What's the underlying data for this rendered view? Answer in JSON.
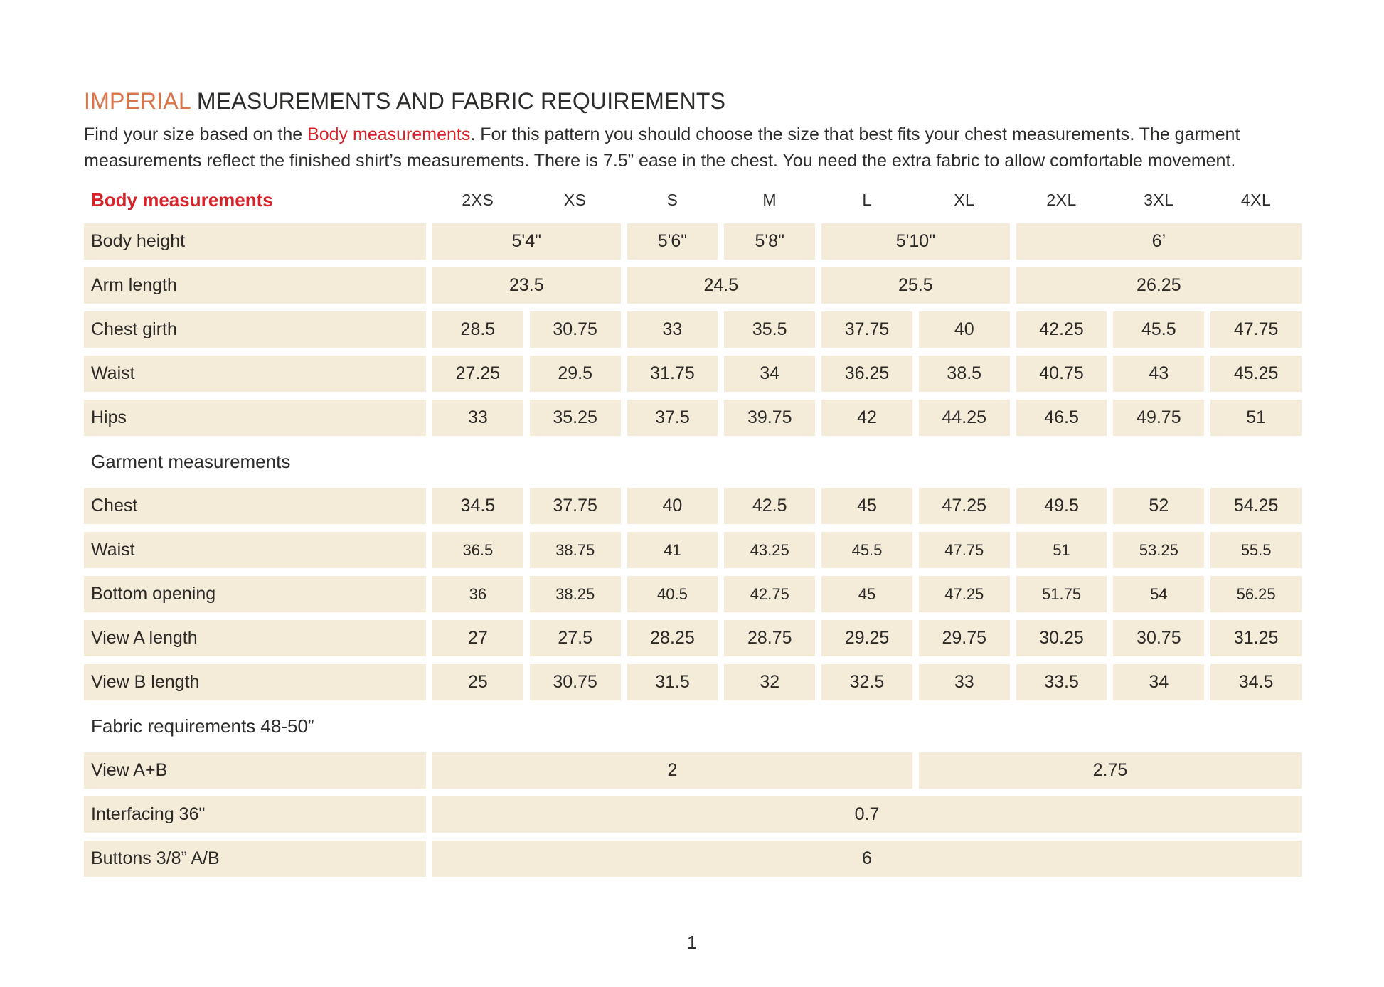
{
  "colors": {
    "accent_orange": "#dc7449",
    "accent_red": "#d7222a",
    "cell_background": "#f4ebd9",
    "text": "#2b2a27",
    "page_background": "#ffffff"
  },
  "title": {
    "highlight": "IMPERIAL",
    "rest": " MEASUREMENTS AND FABRIC REQUIREMENTS"
  },
  "intro": {
    "part1": "Find your size based on the ",
    "highlight": "Body measurements",
    "part2": ". For this pattern you should choose the size that best fits your chest measurements. The garment measurements reflect the finished shirt’s measurements. There is 7.5” ease in the chest. You need the extra fabric to allow comfortable movement."
  },
  "table": {
    "header_label": "Body measurements",
    "sizes": [
      "2XS",
      "XS",
      "S",
      "M",
      "L",
      "XL",
      "2XL",
      "3XL",
      "4XL"
    ],
    "rows": [
      {
        "type": "data",
        "label": "Body height",
        "cells": [
          {
            "v": "5'4\"",
            "span": 2
          },
          {
            "v": "5'6\"",
            "span": 1
          },
          {
            "v": "5'8\"",
            "span": 1
          },
          {
            "v": "5'10\"",
            "span": 2
          },
          {
            "v": "6’",
            "span": 3
          }
        ]
      },
      {
        "type": "data",
        "label": "Arm length",
        "cells": [
          {
            "v": "23.5",
            "span": 2
          },
          {
            "v": "24.5",
            "span": 2
          },
          {
            "v": "25.5",
            "span": 2
          },
          {
            "v": "26.25",
            "span": 3
          }
        ]
      },
      {
        "type": "data",
        "label": "Chest girth",
        "cells": [
          {
            "v": "28.5",
            "span": 1
          },
          {
            "v": "30.75",
            "span": 1
          },
          {
            "v": "33",
            "span": 1
          },
          {
            "v": "35.5",
            "span": 1
          },
          {
            "v": "37.75",
            "span": 1
          },
          {
            "v": "40",
            "span": 1
          },
          {
            "v": "42.25",
            "span": 1
          },
          {
            "v": "45.5",
            "span": 1
          },
          {
            "v": "47.75",
            "span": 1
          }
        ]
      },
      {
        "type": "data",
        "label": "Waist",
        "cells": [
          {
            "v": "27.25",
            "span": 1
          },
          {
            "v": "29.5",
            "span": 1
          },
          {
            "v": "31.75",
            "span": 1
          },
          {
            "v": "34",
            "span": 1
          },
          {
            "v": "36.25",
            "span": 1
          },
          {
            "v": "38.5",
            "span": 1
          },
          {
            "v": "40.75",
            "span": 1
          },
          {
            "v": "43",
            "span": 1
          },
          {
            "v": "45.25",
            "span": 1
          }
        ]
      },
      {
        "type": "data",
        "label": "Hips",
        "cells": [
          {
            "v": "33",
            "span": 1
          },
          {
            "v": "35.25",
            "span": 1
          },
          {
            "v": "37.5",
            "span": 1
          },
          {
            "v": "39.75",
            "span": 1
          },
          {
            "v": "42",
            "span": 1
          },
          {
            "v": "44.25",
            "span": 1
          },
          {
            "v": "46.5",
            "span": 1
          },
          {
            "v": "49.75",
            "span": 1
          },
          {
            "v": "51",
            "span": 1
          }
        ]
      },
      {
        "type": "section",
        "label": "Garment measurements"
      },
      {
        "type": "data",
        "label": "Chest",
        "cells": [
          {
            "v": "34.5",
            "span": 1
          },
          {
            "v": "37.75",
            "span": 1
          },
          {
            "v": "40",
            "span": 1
          },
          {
            "v": "42.5",
            "span": 1
          },
          {
            "v": "45",
            "span": 1
          },
          {
            "v": "47.25",
            "span": 1
          },
          {
            "v": "49.5",
            "span": 1
          },
          {
            "v": "52",
            "span": 1
          },
          {
            "v": "54.25",
            "span": 1
          }
        ]
      },
      {
        "type": "data",
        "label": "Waist",
        "small": true,
        "cells": [
          {
            "v": "36.5",
            "span": 1
          },
          {
            "v": "38.75",
            "span": 1
          },
          {
            "v": "41",
            "span": 1
          },
          {
            "v": "43.25",
            "span": 1
          },
          {
            "v": "45.5",
            "span": 1
          },
          {
            "v": "47.75",
            "span": 1
          },
          {
            "v": "51",
            "span": 1
          },
          {
            "v": "53.25",
            "span": 1
          },
          {
            "v": "55.5",
            "span": 1
          }
        ]
      },
      {
        "type": "data",
        "label": "Bottom opening",
        "small": true,
        "cells": [
          {
            "v": "36",
            "span": 1
          },
          {
            "v": "38.25",
            "span": 1
          },
          {
            "v": "40.5",
            "span": 1
          },
          {
            "v": "42.75",
            "span": 1
          },
          {
            "v": "45",
            "span": 1
          },
          {
            "v": "47.25",
            "span": 1
          },
          {
            "v": "51.75",
            "span": 1
          },
          {
            "v": "54",
            "span": 1
          },
          {
            "v": "56.25",
            "span": 1
          }
        ]
      },
      {
        "type": "data",
        "label": "View A length",
        "cells": [
          {
            "v": "27",
            "span": 1
          },
          {
            "v": "27.5",
            "span": 1
          },
          {
            "v": "28.25",
            "span": 1
          },
          {
            "v": "28.75",
            "span": 1
          },
          {
            "v": "29.25",
            "span": 1
          },
          {
            "v": "29.75",
            "span": 1
          },
          {
            "v": "30.25",
            "span": 1
          },
          {
            "v": "30.75",
            "span": 1
          },
          {
            "v": "31.25",
            "span": 1
          }
        ]
      },
      {
        "type": "data",
        "label": "View B length",
        "cells": [
          {
            "v": "25",
            "span": 1
          },
          {
            "v": "30.75",
            "span": 1
          },
          {
            "v": "31.5",
            "span": 1
          },
          {
            "v": "32",
            "span": 1
          },
          {
            "v": "32.5",
            "span": 1
          },
          {
            "v": "33",
            "span": 1
          },
          {
            "v": "33.5",
            "span": 1
          },
          {
            "v": "34",
            "span": 1
          },
          {
            "v": "34.5",
            "span": 1
          }
        ]
      },
      {
        "type": "section",
        "label": "Fabric requirements 48-50”"
      },
      {
        "type": "data",
        "label": "View A+B",
        "cells": [
          {
            "v": "2",
            "span": 5
          },
          {
            "v": "2.75",
            "span": 4
          }
        ]
      },
      {
        "type": "data",
        "label": "Interfacing 36\"",
        "cells": [
          {
            "v": "0.7",
            "span": 9
          }
        ]
      },
      {
        "type": "data",
        "label": "Buttons 3/8” A/B",
        "cells": [
          {
            "v": "6",
            "span": 9
          }
        ]
      }
    ]
  },
  "page_number": "1"
}
